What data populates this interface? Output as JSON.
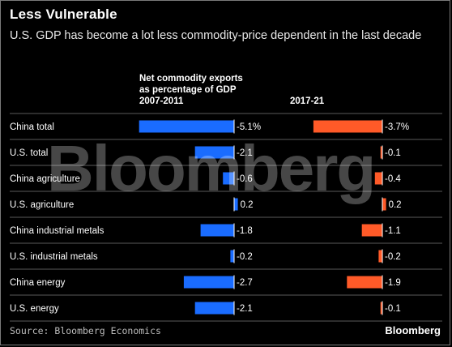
{
  "header": {
    "title": "Less Vulnerable",
    "subtitle": "U.S. GDP has become a lot less commodity-price dependent in the last decade"
  },
  "columns": {
    "left_heading": [
      "Net commodity exports",
      "as percentage of GDP",
      "2007-2011"
    ],
    "right_heading": "2017-21"
  },
  "footer": {
    "source": "Source: Bloomberg Economics",
    "logo": "Bloomberg",
    "watermark": "Bloomberg"
  },
  "colors": {
    "series_2007_2011": "#1a6cff",
    "series_2017_21": "#ff5a28",
    "divider": "#5a5a5a"
  },
  "chart_data": {
    "type": "bar",
    "orientation": "horizontal",
    "title": "Less Vulnerable",
    "subtitle": "U.S. GDP has become a lot less commodity-price dependent in the last decade",
    "categories": [
      "China total",
      "U.S. total",
      "China agriculture",
      "U.S. agriculture",
      "China industrial metals",
      "U.S. industrial metals",
      "China energy",
      "U.S. energy"
    ],
    "series": [
      {
        "name": "2007-2011",
        "values": [
          -5.1,
          -2.1,
          -0.6,
          0.2,
          -1.8,
          -0.2,
          -2.7,
          -2.1
        ],
        "labels": [
          "-5.1%",
          "-2.1",
          "-0.6",
          "0.2",
          "-1.8",
          "-0.2",
          "-2.7",
          "-2.1"
        ]
      },
      {
        "name": "2017-21",
        "values": [
          -3.7,
          -0.1,
          -0.4,
          0.2,
          -1.1,
          -0.2,
          -1.9,
          -0.1
        ],
        "labels": [
          "-3.7%",
          "-0.1",
          "-0.4",
          "0.2",
          "-1.1",
          "-0.2",
          "-1.9",
          "-0.1"
        ]
      }
    ],
    "xlabel": "",
    "ylabel": "",
    "grid": false,
    "legend": "none"
  }
}
